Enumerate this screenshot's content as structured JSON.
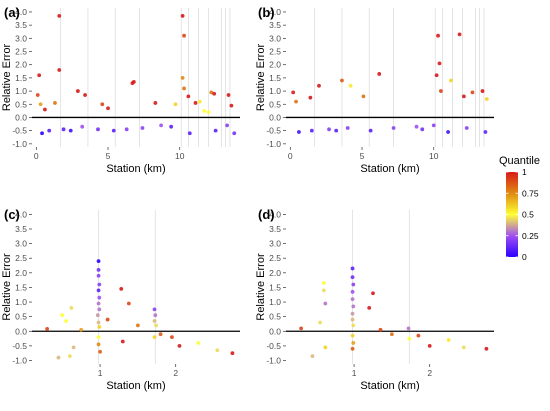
{
  "legend": {
    "title": "Quantile",
    "ticks": [
      "1",
      "0.75",
      "0.5",
      "0.25",
      "0"
    ],
    "tick_values": [
      1,
      0.75,
      0.5,
      0.25,
      0
    ],
    "colors": [
      "#d7191c",
      "#e08a12",
      "#ffff33",
      "#a050f0",
      "#2c00ff"
    ]
  },
  "chart_data": [
    {
      "type": "scatter",
      "panel": "(a)",
      "xlabel": "Station (km)",
      "ylabel": "Relative Error",
      "xlim": [
        -0.3,
        14.2
      ],
      "ylim": [
        -1.12,
        4.15
      ],
      "x_ticks": [
        0,
        5,
        10
      ],
      "x_tick_labels": [
        "0",
        "5",
        "10"
      ],
      "y_ticks": [
        -1.0,
        -0.5,
        0.0,
        0.5,
        1.0,
        1.5,
        2.0,
        2.5,
        3.0,
        3.5,
        4.0
      ],
      "y_tick_labels": [
        "-1.0",
        "-0.5",
        "0.0",
        "0.5",
        "1.0",
        "1.5",
        "2.0",
        "2.5",
        "3.0",
        "3.5",
        "4.0"
      ],
      "vlines": [
        1.7,
        3.6,
        5.5,
        7.2,
        10.1,
        10.6,
        11.3,
        12.0,
        12.9,
        13.2,
        13.5
      ],
      "hline": 0,
      "grid": false,
      "points": [
        [
          0.2,
          1.6,
          1.0
        ],
        [
          0.1,
          0.85,
          0.9
        ],
        [
          0.3,
          0.5,
          0.7
        ],
        [
          0.6,
          0.3,
          1.0
        ],
        [
          1.6,
          1.8,
          1.0
        ],
        [
          1.6,
          3.85,
          1.0
        ],
        [
          1.3,
          0.55,
          0.8
        ],
        [
          2.9,
          1.0,
          1.0
        ],
        [
          3.4,
          0.85,
          1.0
        ],
        [
          4.6,
          0.5,
          0.9
        ],
        [
          5.0,
          0.35,
          1.0
        ],
        [
          6.8,
          1.35,
          1.0
        ],
        [
          6.7,
          1.3,
          1.0
        ],
        [
          8.3,
          0.55,
          1.0
        ],
        [
          9.7,
          0.5,
          0.6
        ],
        [
          10.2,
          3.85,
          1.0
        ],
        [
          10.3,
          3.1,
          0.9
        ],
        [
          10.2,
          1.5,
          0.75
        ],
        [
          10.3,
          1.1,
          0.8
        ],
        [
          10.6,
          0.8,
          1.0
        ],
        [
          11.1,
          0.55,
          1.0
        ],
        [
          11.4,
          0.6,
          0.55
        ],
        [
          12.2,
          0.95,
          0.8
        ],
        [
          12.4,
          0.9,
          1.0
        ],
        [
          13.4,
          0.85,
          1.0
        ],
        [
          13.6,
          0.45,
          1.0
        ],
        [
          11.7,
          0.25,
          0.5
        ],
        [
          12.0,
          0.2,
          0.5
        ],
        [
          0.4,
          -0.6,
          0.0
        ],
        [
          0.9,
          -0.5,
          0.1
        ],
        [
          1.9,
          -0.45,
          0.1
        ],
        [
          3.2,
          -0.35,
          0.25
        ],
        [
          5.4,
          -0.5,
          0.1
        ],
        [
          6.3,
          -0.45,
          0.2
        ],
        [
          8.7,
          -0.3,
          0.25
        ],
        [
          9.4,
          -0.35,
          0.1
        ],
        [
          10.7,
          -0.6,
          0.1
        ],
        [
          12.5,
          -0.5,
          0.1
        ],
        [
          13.3,
          -0.3,
          0.2
        ],
        [
          13.8,
          -0.6,
          0.15
        ],
        [
          2.4,
          -0.5,
          0.05
        ],
        [
          4.3,
          -0.45,
          0.15
        ],
        [
          7.4,
          -0.4,
          0.2
        ]
      ]
    },
    {
      "type": "scatter",
      "panel": "(b)",
      "xlabel": "Station (km)",
      "ylabel": "Relative Error",
      "xlim": [
        -0.3,
        14.2
      ],
      "ylim": [
        -1.12,
        4.15
      ],
      "x_ticks": [
        0,
        5,
        10
      ],
      "x_tick_labels": [
        "0",
        "5",
        "10"
      ],
      "y_ticks": [
        -1.0,
        -0.5,
        0.0,
        0.5,
        1.0,
        1.5,
        2.0,
        2.5,
        3.0,
        3.5,
        4.0
      ],
      "y_tick_labels": [
        "-1.0",
        "-0.5",
        "0.0",
        "0.5",
        "1.0",
        "1.5",
        "2.0",
        "2.5",
        "3.0",
        "3.5",
        "4.0"
      ],
      "vlines": [
        1.7,
        3.6,
        5.5,
        7.2,
        10.1,
        10.6,
        11.3,
        12.0,
        12.9,
        13.2,
        13.5
      ],
      "hline": 0,
      "grid": false,
      "points": [
        [
          0.2,
          0.95,
          1.0
        ],
        [
          0.4,
          0.6,
          0.8
        ],
        [
          1.4,
          0.75,
          1.0
        ],
        [
          2.0,
          1.2,
          1.0
        ],
        [
          3.6,
          1.4,
          0.85
        ],
        [
          4.2,
          1.2,
          0.55
        ],
        [
          5.1,
          0.8,
          0.8
        ],
        [
          6.2,
          1.65,
          1.0
        ],
        [
          10.3,
          3.1,
          1.0
        ],
        [
          10.4,
          2.05,
          1.0
        ],
        [
          10.2,
          1.6,
          1.0
        ],
        [
          10.5,
          1.0,
          0.9
        ],
        [
          11.2,
          1.4,
          0.6
        ],
        [
          11.8,
          3.15,
          1.0
        ],
        [
          12.1,
          0.8,
          1.0
        ],
        [
          12.7,
          0.95,
          0.9
        ],
        [
          13.4,
          1.0,
          1.0
        ],
        [
          13.7,
          0.7,
          0.6
        ],
        [
          0.6,
          -0.55,
          0.05
        ],
        [
          1.5,
          -0.5,
          0.1
        ],
        [
          2.7,
          -0.45,
          0.2
        ],
        [
          4.0,
          -0.4,
          0.2
        ],
        [
          5.6,
          -0.5,
          0.1
        ],
        [
          7.2,
          -0.4,
          0.2
        ],
        [
          8.8,
          -0.35,
          0.25
        ],
        [
          10.0,
          -0.3,
          0.2
        ],
        [
          11.0,
          -0.55,
          0.05
        ],
        [
          12.3,
          -0.4,
          0.2
        ],
        [
          13.6,
          -0.55,
          0.1
        ],
        [
          9.2,
          -0.45,
          0.15
        ],
        [
          3.2,
          -0.5,
          0.1
        ]
      ]
    },
    {
      "type": "scatter",
      "panel": "(c)",
      "xlabel": "Station (km)",
      "ylabel": "Relative Error",
      "xlim": [
        0.1,
        2.85
      ],
      "ylim": [
        -1.12,
        4.15
      ],
      "x_ticks": [
        1,
        2
      ],
      "x_tick_labels": [
        "1",
        "2"
      ],
      "y_ticks": [
        -1.0,
        -0.5,
        0.0,
        0.5,
        1.0,
        1.5,
        2.0,
        2.5,
        3.0,
        3.5,
        4.0
      ],
      "y_tick_labels": [
        "-1.0",
        "-0.5",
        "0.0",
        "0.5",
        "1.0",
        "1.5",
        "2.0",
        "2.5",
        "3.0",
        "3.5",
        "4.0"
      ],
      "vlines": [
        0.98,
        1.73
      ],
      "hline": 0,
      "grid": false,
      "points": [
        [
          0.98,
          2.4,
          0.0
        ],
        [
          0.98,
          2.1,
          0.15
        ],
        [
          0.98,
          1.9,
          0.2
        ],
        [
          0.99,
          1.6,
          0.2
        ],
        [
          0.98,
          1.4,
          0.1
        ],
        [
          0.99,
          1.15,
          0.25
        ],
        [
          0.98,
          0.95,
          0.3
        ],
        [
          0.99,
          0.75,
          0.3
        ],
        [
          0.97,
          0.55,
          0.35
        ],
        [
          0.98,
          0.3,
          0.4
        ],
        [
          0.98,
          -0.2,
          0.5
        ],
        [
          0.98,
          -0.45,
          0.75
        ],
        [
          1.0,
          -0.7,
          0.85
        ],
        [
          0.99,
          0.15,
          0.6
        ],
        [
          0.5,
          0.55,
          0.5
        ],
        [
          0.55,
          0.35,
          0.5
        ],
        [
          0.62,
          0.8,
          0.45
        ],
        [
          0.45,
          -0.9,
          0.4
        ],
        [
          0.6,
          -0.85,
          0.45
        ],
        [
          0.65,
          -0.55,
          0.4
        ],
        [
          0.75,
          0.05,
          0.7
        ],
        [
          0.3,
          0.08,
          0.9
        ],
        [
          1.1,
          0.4,
          0.9
        ],
        [
          1.28,
          1.45,
          1.0
        ],
        [
          1.3,
          -0.35,
          1.0
        ],
        [
          1.38,
          0.95,
          0.9
        ],
        [
          1.5,
          0.2,
          0.8
        ],
        [
          1.72,
          0.75,
          0.2
        ],
        [
          1.73,
          0.55,
          0.3
        ],
        [
          1.72,
          0.35,
          0.4
        ],
        [
          1.74,
          0.2,
          0.45
        ],
        [
          1.72,
          -0.2,
          0.6
        ],
        [
          1.8,
          -0.1,
          0.85
        ],
        [
          1.95,
          -0.2,
          0.9
        ],
        [
          2.05,
          -0.5,
          1.0
        ],
        [
          2.3,
          -0.4,
          0.5
        ],
        [
          2.55,
          -0.65,
          0.45
        ],
        [
          2.75,
          -0.75,
          1.0
        ]
      ]
    },
    {
      "type": "scatter",
      "panel": "(d)",
      "xlabel": "Station (km)",
      "ylabel": "Relative Error",
      "xlim": [
        0.1,
        2.85
      ],
      "ylim": [
        -1.12,
        4.15
      ],
      "x_ticks": [
        1,
        2
      ],
      "x_tick_labels": [
        "1",
        "2"
      ],
      "y_ticks": [
        -1.0,
        -0.5,
        0.0,
        0.5,
        1.0,
        1.5,
        2.0,
        2.5,
        3.0,
        3.5,
        4.0
      ],
      "y_tick_labels": [
        "-1.0",
        "-0.5",
        "0.0",
        "0.5",
        "1.0",
        "1.5",
        "2.0",
        "2.5",
        "3.0",
        "3.5",
        "4.0"
      ],
      "vlines": [
        0.98,
        1.73
      ],
      "hline": 0,
      "grid": false,
      "points": [
        [
          0.98,
          2.15,
          0.1
        ],
        [
          0.98,
          1.85,
          0.15
        ],
        [
          0.99,
          1.6,
          0.2
        ],
        [
          0.98,
          1.35,
          0.25
        ],
        [
          0.98,
          1.1,
          0.3
        ],
        [
          0.99,
          0.85,
          0.3
        ],
        [
          0.98,
          0.6,
          0.35
        ],
        [
          0.98,
          0.4,
          0.4
        ],
        [
          0.99,
          0.2,
          0.45
        ],
        [
          0.98,
          -0.15,
          0.6
        ],
        [
          0.99,
          -0.4,
          0.7
        ],
        [
          0.98,
          -0.6,
          0.85
        ],
        [
          0.6,
          1.65,
          0.5
        ],
        [
          0.6,
          1.4,
          0.45
        ],
        [
          0.62,
          0.95,
          0.3
        ],
        [
          0.55,
          0.3,
          0.45
        ],
        [
          0.45,
          -0.85,
          0.4
        ],
        [
          0.62,
          -0.55,
          0.6
        ],
        [
          0.3,
          0.1,
          0.9
        ],
        [
          1.2,
          0.8,
          1.0
        ],
        [
          1.25,
          1.3,
          1.0
        ],
        [
          1.35,
          0.05,
          0.9
        ],
        [
          1.5,
          -0.1,
          0.8
        ],
        [
          1.72,
          0.1,
          0.3
        ],
        [
          1.73,
          -0.25,
          0.5
        ],
        [
          1.85,
          -0.15,
          0.9
        ],
        [
          2.0,
          -0.5,
          1.0
        ],
        [
          2.25,
          -0.3,
          0.55
        ],
        [
          2.45,
          -0.55,
          0.45
        ],
        [
          2.75,
          -0.6,
          1.0
        ]
      ]
    }
  ]
}
